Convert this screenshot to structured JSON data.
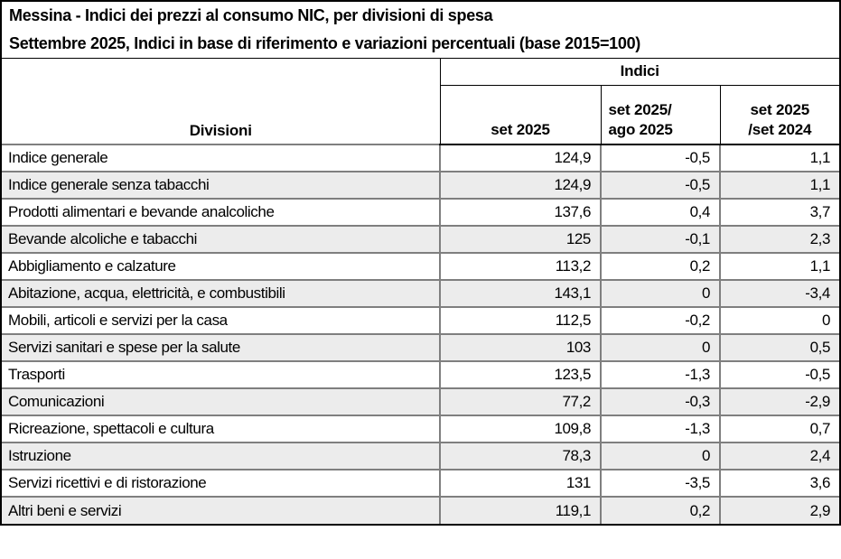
{
  "title": {
    "line1": "Messina - Indici dei prezzi al consumo NIC, per divisioni di spesa",
    "line2": "Settembre 2025, Indici in base di riferimento e variazioni percentuali (base 2015=100)"
  },
  "header": {
    "col_divisioni": "Divisioni",
    "group_indici": "Indici",
    "col_set": "set 2025",
    "col_mom_line1": "set 2025/",
    "col_mom_line2": "ago 2025",
    "col_yoy_line1": "set 2025",
    "col_yoy_line2": "/set 2024"
  },
  "rows": [
    {
      "label": "Indice generale",
      "index": "124,9",
      "mom": "-0,5",
      "yoy": "1,1"
    },
    {
      "label": "Indice generale senza tabacchi",
      "index": "124,9",
      "mom": "-0,5",
      "yoy": "1,1"
    },
    {
      "label": "Prodotti alimentari e bevande analcoliche",
      "index": "137,6",
      "mom": "0,4",
      "yoy": "3,7"
    },
    {
      "label": "Bevande alcoliche e tabacchi",
      "index": "125",
      "mom": "-0,1",
      "yoy": "2,3"
    },
    {
      "label": "Abbigliamento e calzature",
      "index": "113,2",
      "mom": "0,2",
      "yoy": "1,1"
    },
    {
      "label": "Abitazione, acqua, elettricità, e combustibili",
      "index": "143,1",
      "mom": "0",
      "yoy": "-3,4"
    },
    {
      "label": "Mobili, articoli e servizi per la casa",
      "index": "112,5",
      "mom": "-0,2",
      "yoy": "0"
    },
    {
      "label": "Servizi sanitari e spese per la salute",
      "index": "103",
      "mom": "0",
      "yoy": "0,5"
    },
    {
      "label": "Trasporti",
      "index": "123,5",
      "mom": "-1,3",
      "yoy": "-0,5"
    },
    {
      "label": "Comunicazioni",
      "index": "77,2",
      "mom": "-0,3",
      "yoy": "-2,9"
    },
    {
      "label": "Ricreazione, spettacoli e cultura",
      "index": "109,8",
      "mom": "-1,3",
      "yoy": "0,7"
    },
    {
      "label": "Istruzione",
      "index": "78,3",
      "mom": "0",
      "yoy": "2,4"
    },
    {
      "label": "Servizi ricettivi e di ristorazione",
      "index": "131",
      "mom": "-3,5",
      "yoy": "3,6"
    },
    {
      "label": "Altri beni e servizi",
      "index": "119,1",
      "mom": "0,2",
      "yoy": "2,9"
    }
  ],
  "colors": {
    "zebra_row_bg": "#ececec",
    "grid_line": "#7f7f7f",
    "outer_border": "#000000",
    "text": "#000000"
  },
  "chart_data": {
    "type": "table",
    "title": "Messina - Indici dei prezzi al consumo NIC, per divisioni di spesa",
    "subtitle": "Settembre 2025, Indici in base di riferimento e variazioni percentuali (base 2015=100)",
    "columns": [
      "Divisioni",
      "set 2025",
      "set 2025/ago 2025",
      "set 2025/set 2024"
    ],
    "group_header": "Indici",
    "rows": [
      [
        "Indice generale",
        124.9,
        -0.5,
        1.1
      ],
      [
        "Indice generale senza tabacchi",
        124.9,
        -0.5,
        1.1
      ],
      [
        "Prodotti alimentari e bevande analcoliche",
        137.6,
        0.4,
        3.7
      ],
      [
        "Bevande alcoliche e tabacchi",
        125,
        -0.1,
        2.3
      ],
      [
        "Abbigliamento e calzature",
        113.2,
        0.2,
        1.1
      ],
      [
        "Abitazione, acqua, elettricità, e combustibili",
        143.1,
        0,
        -3.4
      ],
      [
        "Mobili, articoli e servizi per la casa",
        112.5,
        -0.2,
        0
      ],
      [
        "Servizi sanitari e spese per la salute",
        103,
        0,
        0.5
      ],
      [
        "Trasporti",
        123.5,
        -1.3,
        -0.5
      ],
      [
        "Comunicazioni",
        77.2,
        -0.3,
        -2.9
      ],
      [
        "Ricreazione, spettacoli e cultura",
        109.8,
        -1.3,
        0.7
      ],
      [
        "Istruzione",
        78.3,
        0,
        2.4
      ],
      [
        "Servizi ricettivi e di ristorazione",
        131,
        -3.5,
        3.6
      ],
      [
        "Altri beni e servizi",
        119.1,
        0.2,
        2.9
      ]
    ]
  }
}
